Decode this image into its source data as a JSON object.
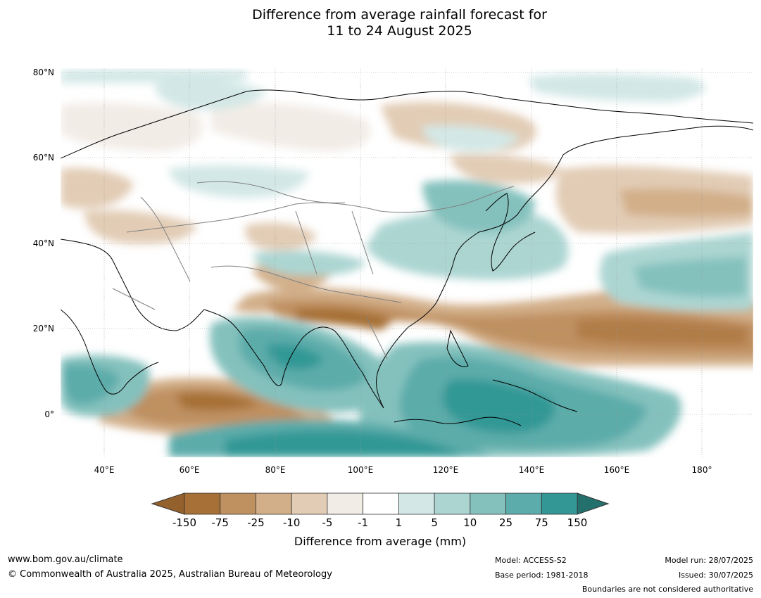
{
  "title_line1": "Difference from average rainfall forecast for",
  "title_line2": "11 to 24 August 2025",
  "map": {
    "lat_labels": [
      "80°N",
      "60°N",
      "40°N",
      "20°N",
      "0°"
    ],
    "lon_labels": [
      "40°E",
      "60°E",
      "80°E",
      "100°E",
      "120°E",
      "140°E",
      "160°E",
      "180°"
    ],
    "colors": {
      "land_outline": "#000000",
      "border": "#808080",
      "grid": "#999999"
    }
  },
  "legend": {
    "title": "Difference from average (mm)",
    "ticks": [
      "-150",
      "-75",
      "-25",
      "-10",
      "-5",
      "-1",
      "1",
      "5",
      "10",
      "25",
      "75",
      "150"
    ],
    "colors": [
      "#a67036",
      "#bf9060",
      "#d2af89",
      "#e2ccb5",
      "#f2ece6",
      "#ffffff",
      "#d3e8e6",
      "#acd5d2",
      "#84c1bd",
      "#5bacaa",
      "#339895",
      "#2a7c79"
    ],
    "extend_low_color": "#94612d",
    "extend_high_color": "#24706d"
  },
  "footer": {
    "url": "www.bom.gov.au/climate",
    "copyright": "© Commonwealth of Australia 2025, Australian Bureau of Meteorology",
    "model": "Model: ACCESS-S2",
    "base_period": "Base period: 1981-2018",
    "model_run": "Model run: 28/07/2025",
    "issued": "Issued: 30/07/2025",
    "boundaries_note": "Boundaries are not considered authoritative"
  }
}
